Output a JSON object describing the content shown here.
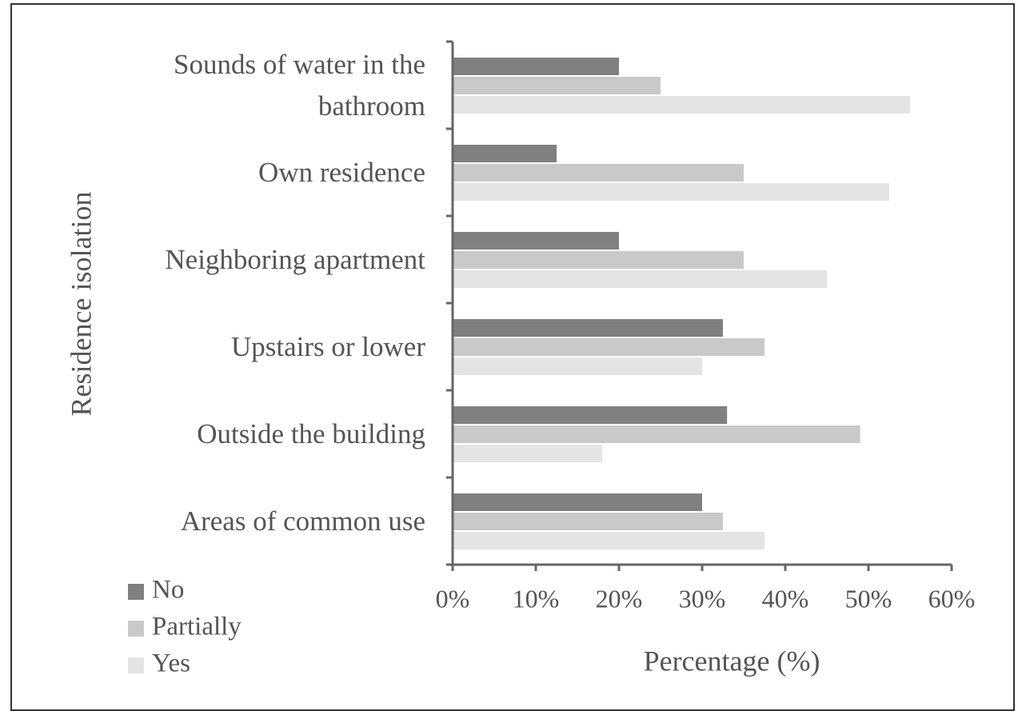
{
  "chart_data": {
    "type": "hbar",
    "y_label": "Residence isolation",
    "x_label": "Percentage (%)",
    "categories": [
      "Sounds of water in the bathroom",
      "Own residence",
      "Neighboring apartment",
      "Upstairs or lower",
      "Outside the building",
      "Areas of common use"
    ],
    "series": [
      {
        "name": "No",
        "color": "#808080",
        "values": [
          20,
          12.5,
          20,
          32.5,
          33,
          30
        ]
      },
      {
        "name": "Partially",
        "color": "#c9c9c9",
        "values": [
          25,
          35,
          35,
          37.5,
          49,
          32.5
        ]
      },
      {
        "name": "Yes",
        "color": "#e4e4e4",
        "values": [
          55,
          52.5,
          45,
          30,
          18,
          37.5
        ]
      }
    ],
    "xlim": [
      0,
      60
    ],
    "xticks": [
      {
        "value": 0,
        "label": "0%"
      },
      {
        "value": 10,
        "label": "10%"
      },
      {
        "value": 20,
        "label": "20%"
      },
      {
        "value": 30,
        "label": "30%"
      },
      {
        "value": 40,
        "label": "40%"
      },
      {
        "value": 50,
        "label": "50%"
      },
      {
        "value": 60,
        "label": "60%"
      }
    ],
    "legend": "bottom-left"
  }
}
